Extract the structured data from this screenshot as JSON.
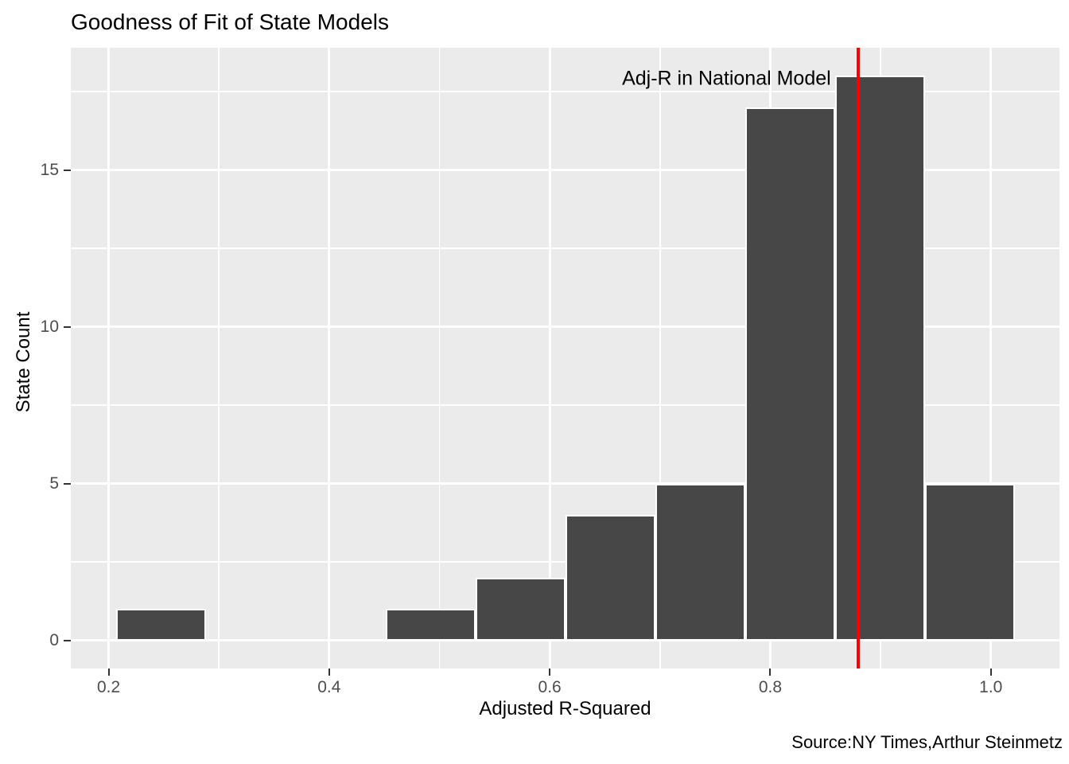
{
  "title": "Goodness of Fit of State Models",
  "caption": "Source:NY Times,Arthur Steinmetz",
  "chart_data": {
    "type": "bar",
    "subtype": "histogram",
    "title": "Goodness of Fit of State Models",
    "xlabel": "Adjusted R-Squared",
    "ylabel": "State Count",
    "bins": {
      "start": 0.2065,
      "width": 0.0815
    },
    "counts": [
      1,
      0,
      0,
      1,
      2,
      4,
      5,
      17,
      18,
      5
    ],
    "x_ticks": [
      0.2,
      0.4,
      0.6,
      0.8,
      1.0
    ],
    "x_tick_labels": [
      "0.2",
      "0.4",
      "0.6",
      "0.8",
      "1.0"
    ],
    "x_minor_gridlines": [
      0.3,
      0.5,
      0.7,
      0.9
    ],
    "y_ticks": [
      0,
      5,
      10,
      15
    ],
    "y_tick_labels": [
      "0",
      "5",
      "10",
      "15"
    ],
    "y_minor_gridlines": [
      2.5,
      7.5,
      12.5,
      17.5
    ],
    "x_domain": [
      0.1657,
      1.0622
    ],
    "y_domain": [
      -0.9,
      18.9
    ],
    "grid": true,
    "legend_position": "none",
    "reference_line": {
      "x": 0.88,
      "color": "#FF0000",
      "label": "Adj-R in National Model",
      "label_x": 0.855,
      "label_y": 18
    },
    "colors": {
      "bar_fill": "#474747",
      "bar_border": "#FFFFFF",
      "panel_bg": "#EBEBEB",
      "grid": "#FFFFFF",
      "tick_text": "#4D4D4D",
      "tick_mark": "#333333",
      "text": "#000000",
      "reference": "#FF0000"
    }
  }
}
